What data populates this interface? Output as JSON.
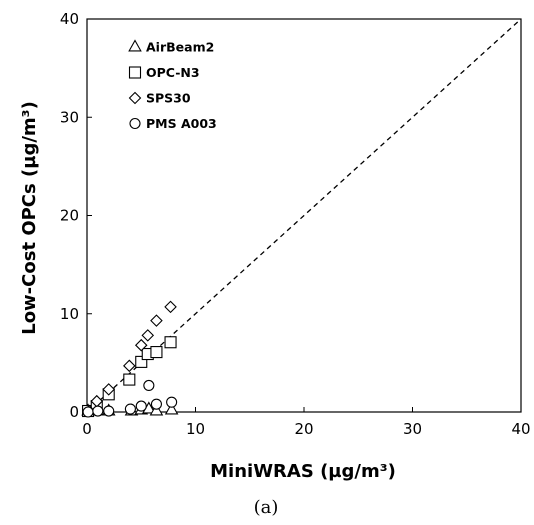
{
  "chart_data": {
    "type": "scatter",
    "xlabel": "MiniWRAS (µg/m³)",
    "ylabel": "Low-Cost OPCs (µg/m³)",
    "xlim": [
      0,
      40
    ],
    "ylim": [
      0,
      40
    ],
    "x_ticks": [
      "0",
      "10",
      "20",
      "30",
      "40"
    ],
    "y_ticks": [
      "0",
      "10",
      "20",
      "30",
      "40"
    ],
    "reference_line": "1:1 dashed",
    "legend_position": "top-left",
    "grid": false,
    "series": [
      {
        "name": "AirBeam2",
        "marker": "triangle",
        "points": [
          [
            0.1,
            0.1
          ],
          [
            0.9,
            0.1
          ],
          [
            2.0,
            0.1
          ],
          [
            4.1,
            0.1
          ],
          [
            5.0,
            0.2
          ],
          [
            5.7,
            0.3
          ],
          [
            6.4,
            0.1
          ],
          [
            7.8,
            0.2
          ]
        ]
      },
      {
        "name": "OPC-N3",
        "marker": "square",
        "points": [
          [
            0.1,
            0.1
          ],
          [
            0.9,
            0.6
          ],
          [
            2.0,
            1.8
          ],
          [
            3.9,
            3.3
          ],
          [
            5.0,
            5.1
          ],
          [
            5.6,
            5.9
          ],
          [
            6.4,
            6.1
          ],
          [
            7.7,
            7.1
          ]
        ]
      },
      {
        "name": "SPS30",
        "marker": "diamond",
        "points": [
          [
            0.2,
            0.1
          ],
          [
            0.9,
            1.1
          ],
          [
            2.0,
            2.3
          ],
          [
            3.9,
            4.7
          ],
          [
            5.0,
            6.8
          ],
          [
            5.6,
            7.8
          ],
          [
            6.4,
            9.3
          ],
          [
            7.7,
            10.7
          ]
        ]
      },
      {
        "name": "PMS A003",
        "marker": "circle",
        "points": [
          [
            0.1,
            0.0
          ],
          [
            1.0,
            0.1
          ],
          [
            2.0,
            0.1
          ],
          [
            4.0,
            0.3
          ],
          [
            5.0,
            0.6
          ],
          [
            5.7,
            2.7
          ],
          [
            6.4,
            0.8
          ],
          [
            7.8,
            1.0
          ]
        ]
      }
    ]
  },
  "caption": "(a)"
}
